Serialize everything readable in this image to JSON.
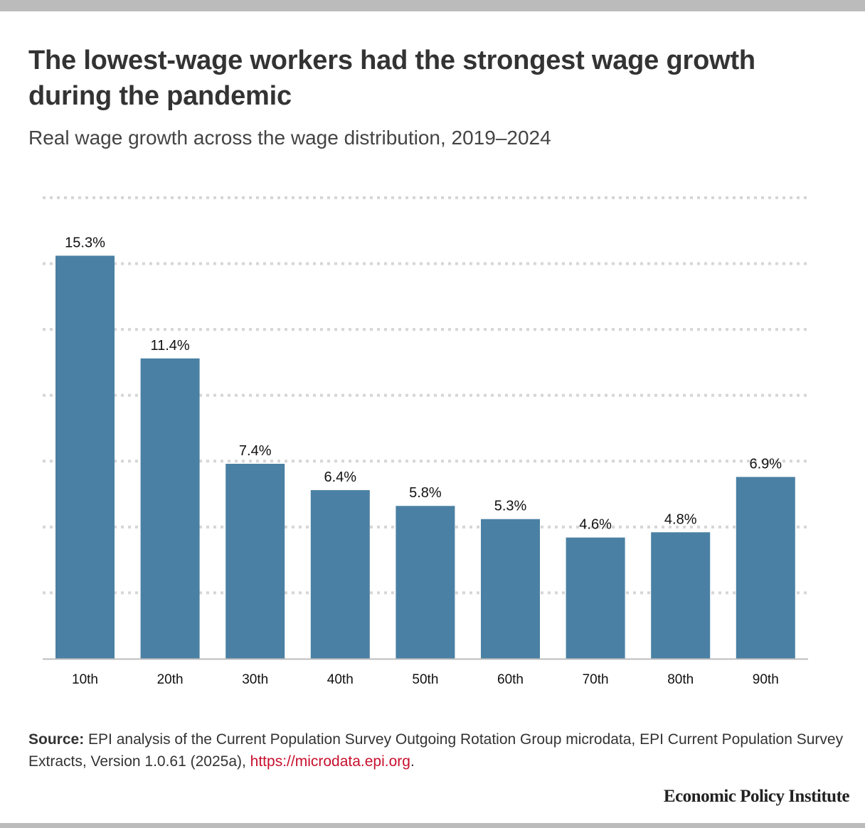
{
  "header": {
    "title": "The lowest-wage workers had the strongest wage growth during the pandemic",
    "subtitle": "Real wage growth across the wage distribution, 2019–2024"
  },
  "chart_data": {
    "type": "bar",
    "title": "The lowest-wage workers had the strongest wage growth during the pandemic",
    "subtitle": "Real wage growth across the wage distribution, 2019–2024",
    "xlabel": "",
    "ylabel": "",
    "categories": [
      "10th",
      "20th",
      "30th",
      "40th",
      "50th",
      "60th",
      "70th",
      "80th",
      "90th"
    ],
    "values": [
      15.3,
      11.4,
      7.4,
      6.4,
      5.8,
      5.3,
      4.6,
      4.8,
      6.9
    ],
    "labels": [
      "15.3%",
      "11.4%",
      "7.4%",
      "6.4%",
      "5.8%",
      "5.3%",
      "4.6%",
      "4.8%",
      "6.9%"
    ],
    "ylim": [
      0,
      17.5
    ],
    "gridlines": [
      2.5,
      5,
      7.5,
      10,
      12.5,
      15,
      17.5
    ],
    "grid": true,
    "bar_color": "#4a80a3"
  },
  "footer": {
    "source_label": "Source:",
    "source_text": " EPI analysis of the Current Population Survey Outgoing Rotation Group microdata, EPI Current Population Survey Extracts, Version 1.0.61 (2025a), ",
    "source_link": "https://microdata.epi.org",
    "source_end": ".",
    "brand": "Economic Policy Institute"
  }
}
